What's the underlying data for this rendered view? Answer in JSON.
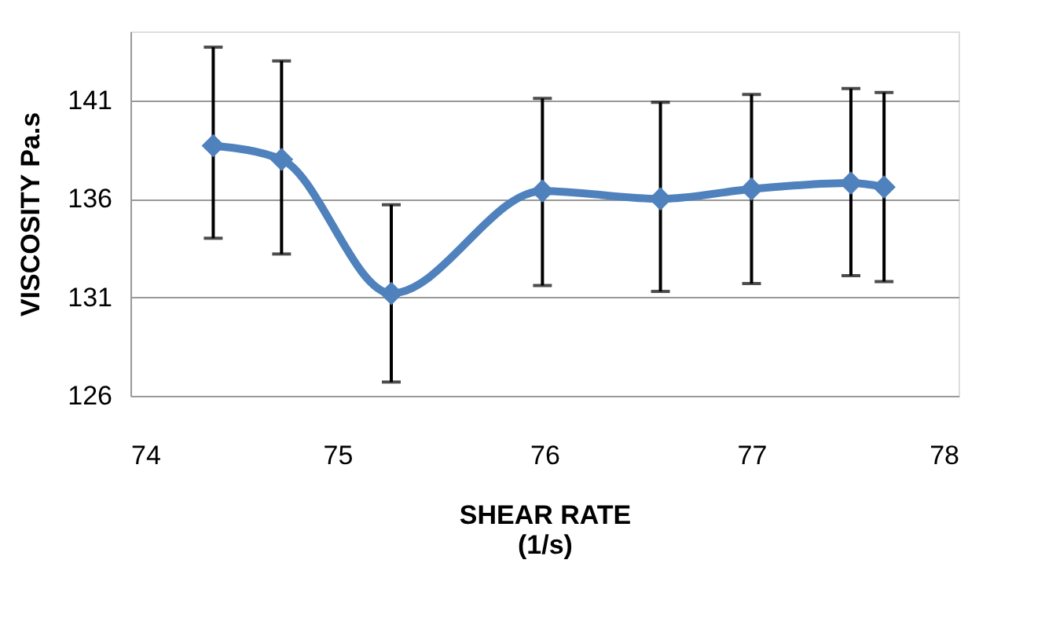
{
  "chart_data": {
    "type": "line",
    "xlabel": "SHEAR RATE\n(1/s)",
    "ylabel": "VISCOSITY   Pa.s",
    "x": [
      74.4,
      74.73,
      75.26,
      75.99,
      76.56,
      77.0,
      77.48,
      77.64
    ],
    "series": [
      {
        "color": "#4f81bd",
        "values": [
          138.7,
          138.0,
          131.2,
          136.4,
          136.0,
          136.5,
          136.8,
          136.6
        ],
        "errors": [
          [
            134.0,
            143.7
          ],
          [
            133.2,
            143.0
          ],
          [
            126.7,
            135.7
          ],
          [
            131.6,
            141.1
          ],
          [
            131.3,
            140.9
          ],
          [
            131.7,
            141.3
          ],
          [
            132.1,
            141.6
          ],
          [
            131.8,
            141.4
          ]
        ]
      }
    ],
    "xlim": [
      74,
      78
    ],
    "xticks": [
      74,
      75,
      76,
      77,
      78
    ],
    "ylim": [
      126,
      144.5
    ],
    "yticks": [
      126,
      131,
      136,
      141
    ],
    "grid": "y",
    "marker": "diamond"
  }
}
